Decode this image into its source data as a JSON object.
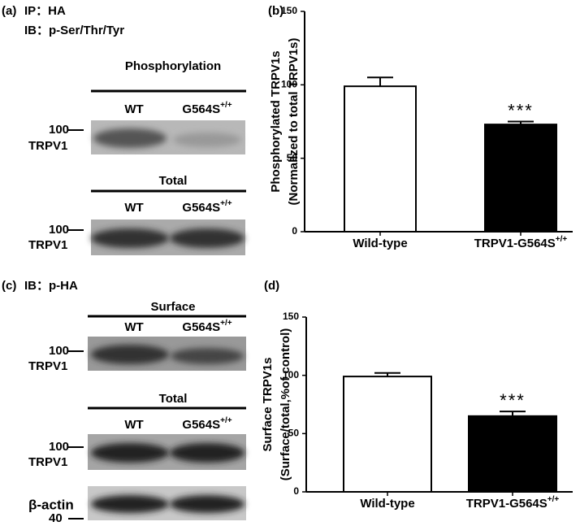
{
  "chart_data": [
    {
      "type": "bar",
      "panel": "(b)",
      "ylabel": [
        "Phosphorylated TRPV1s",
        "(Normalized to total TRPV1s)"
      ],
      "categories": [
        "Wild-type",
        "TRPV1-G564S+/+"
      ],
      "values": [
        99,
        73
      ],
      "errors": [
        6,
        2
      ],
      "colors": [
        "#ffffff",
        "#000000"
      ],
      "annotations": [
        null,
        "***"
      ],
      "ylim": [
        0,
        150
      ],
      "yticks": [
        0,
        50,
        100,
        150
      ]
    },
    {
      "type": "bar",
      "panel": "(d)",
      "ylabel": [
        "Surface TRPV1s",
        "(Surface/total,%of control)"
      ],
      "categories": [
        "Wild-type",
        "TRPV1-G564S+/+"
      ],
      "values": [
        99,
        65
      ],
      "errors": [
        3,
        4
      ],
      "colors": [
        "#ffffff",
        "#000000"
      ],
      "annotations": [
        null,
        "***"
      ],
      "ylim": [
        0,
        150
      ],
      "yticks": [
        0,
        50,
        100,
        150
      ]
    }
  ],
  "blots": [
    {
      "panel": "(a)",
      "lines": [
        "IP：HA",
        "IB：p-Ser/Thr/Tyr"
      ],
      "sections": [
        {
          "title": "Phosphorylation",
          "lanes": [
            "WT",
            "G564S+/+"
          ],
          "marker": "100",
          "protein": "TRPV1"
        },
        {
          "title": "Total",
          "lanes": [
            "WT",
            "G564S+/+"
          ],
          "marker": "100",
          "protein": "TRPV1"
        }
      ]
    },
    {
      "panel": "(c)",
      "lines": [
        "IB：p-HA"
      ],
      "sections": [
        {
          "title": "Surface",
          "lanes": [
            "WT",
            "G564S+/+"
          ],
          "marker": "100",
          "protein": "TRPV1"
        },
        {
          "title": "Total",
          "lanes": [
            "WT",
            "G564S+/+"
          ],
          "marker": "100",
          "protein": "TRPV1"
        }
      ],
      "loading": {
        "protein": "β-actin",
        "marker": "40"
      }
    }
  ]
}
